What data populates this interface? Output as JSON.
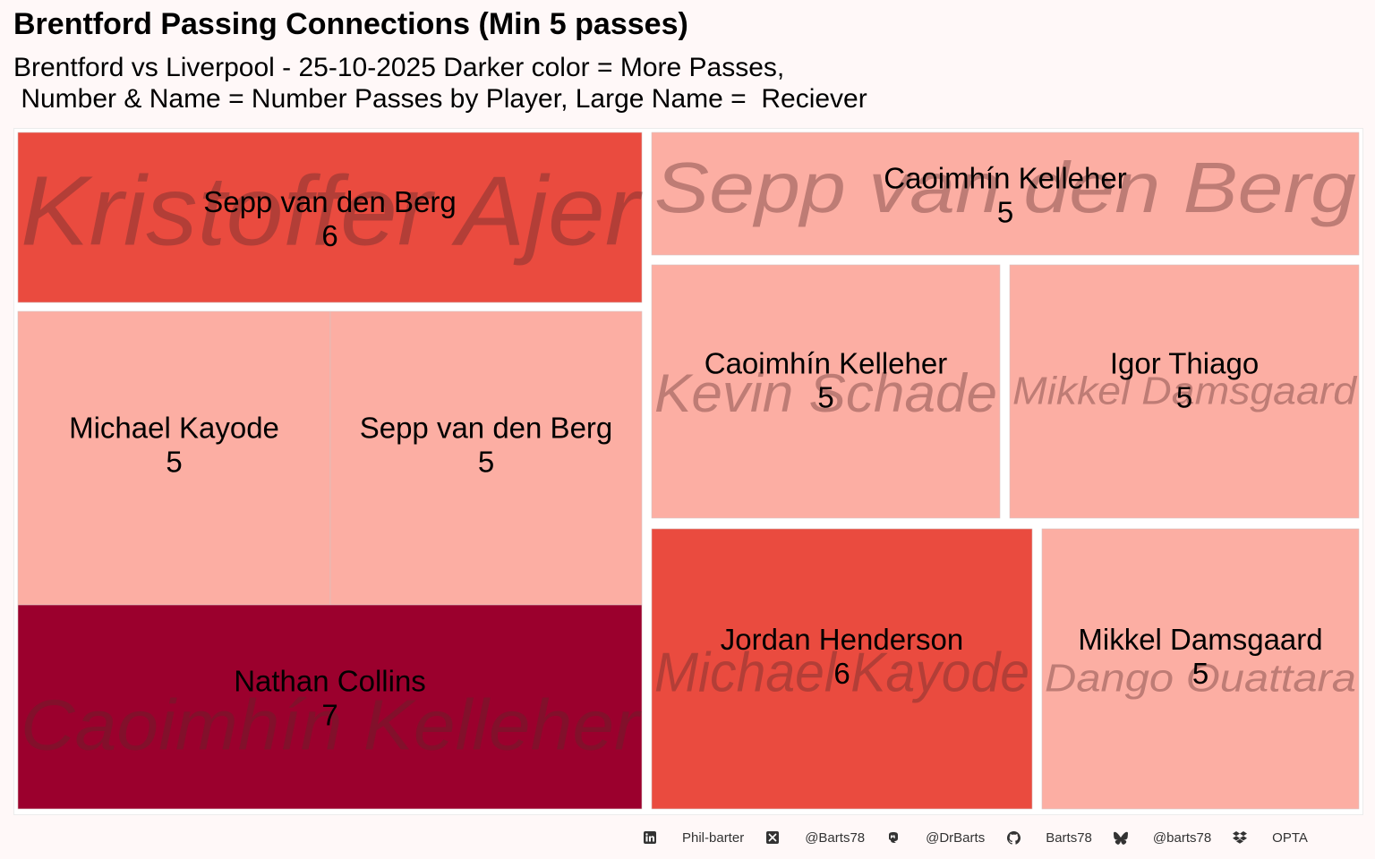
{
  "title": "Brentford Passing Connections (Min 5 passes)",
  "subtitle": "Brentford vs Liverpool - 25-10-2025 Darker color = More Passes,\n Number & Name = Number Passes by Player, Large Name =  Reciever",
  "colors": {
    "c5": "#fcaea3",
    "c6": "#ea4b3f",
    "c7": "#9b002d",
    "background": "#fff8f8"
  },
  "chart_data": {
    "type": "treemap",
    "groups": [
      {
        "receiver": "Kristoffer Ajer",
        "children": [
          {
            "passer": "Sepp van den Berg",
            "passes": 6
          }
        ]
      },
      {
        "receiver": "Caoimhín Kelleher",
        "children": [
          {
            "passer": "Michael Kayode",
            "passes": 5
          },
          {
            "passer": "Sepp van den Berg",
            "passes": 5
          },
          {
            "passer": "Nathan Collins",
            "passes": 7
          }
        ]
      },
      {
        "receiver": "Sepp van den Berg",
        "children": [
          {
            "passer": "Caoimhín Kelleher",
            "passes": 5
          }
        ]
      },
      {
        "receiver": "Kevin Schade",
        "children": [
          {
            "passer": "Caoimhín Kelleher",
            "passes": 5
          }
        ]
      },
      {
        "receiver": "Mikkel Damsgaard",
        "children": [
          {
            "passer": "Igor Thiago",
            "passes": 5
          }
        ]
      },
      {
        "receiver": "Michael Kayode",
        "children": [
          {
            "passer": "Jordan Henderson",
            "passes": 6
          }
        ]
      },
      {
        "receiver": "Dango Ouattara",
        "children": [
          {
            "passer": "Mikkel Damsgaard",
            "passes": 5
          }
        ]
      }
    ]
  },
  "footer": {
    "items": [
      {
        "icon": "linkedin-icon",
        "text": "Phil-barter"
      },
      {
        "icon": "x-twitter-icon",
        "text": "@Barts78"
      },
      {
        "icon": "mastodon-icon",
        "text": "@DrBarts"
      },
      {
        "icon": "github-icon",
        "text": "Barts78"
      },
      {
        "icon": "bluesky-icon",
        "text": "@barts78"
      },
      {
        "icon": "dropbox-icon",
        "text": "OPTA"
      }
    ]
  }
}
